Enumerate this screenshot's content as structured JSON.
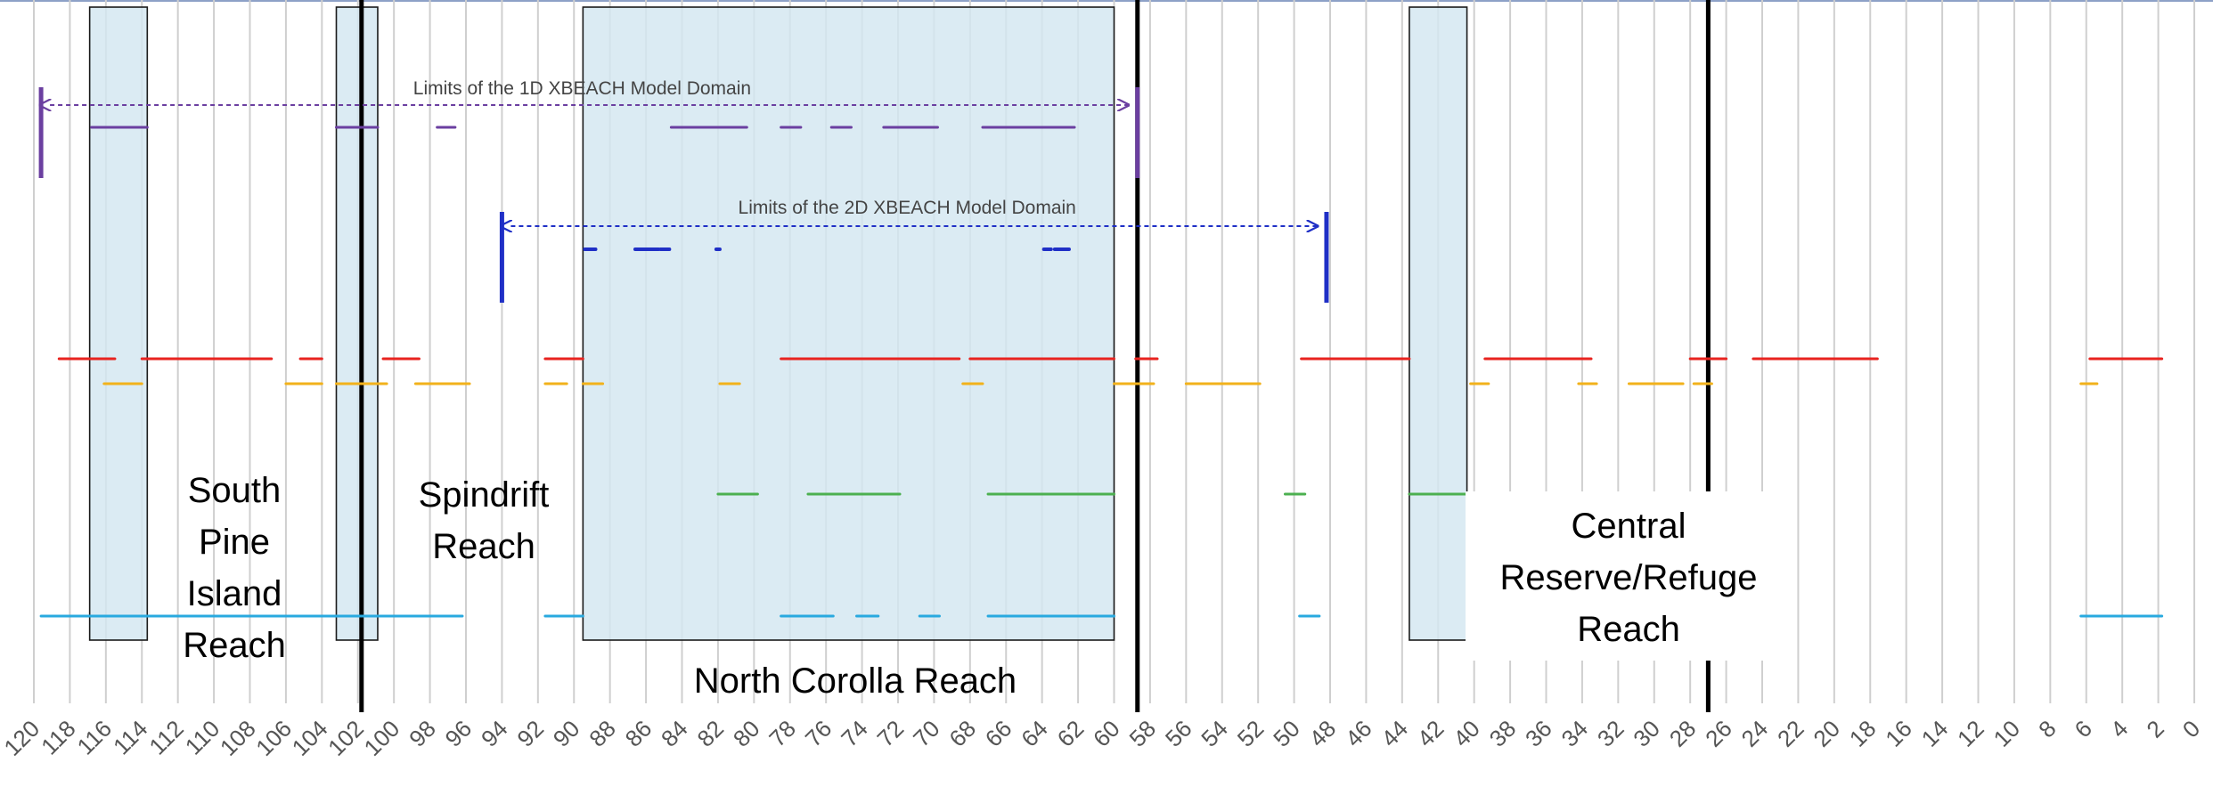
{
  "chart_data": {
    "type": "timeline",
    "x_axis": {
      "min": 0,
      "max": 120,
      "reversed": true,
      "tick_step": 2,
      "tick_labels": [
        "120",
        "118",
        "116",
        "114",
        "112",
        "110",
        "108",
        "106",
        "104",
        "102",
        "100",
        "98",
        "96",
        "94",
        "92",
        "90",
        "88",
        "86",
        "84",
        "82",
        "80",
        "78",
        "76",
        "74",
        "72",
        "70",
        "68",
        "66",
        "64",
        "62",
        "60",
        "58",
        "56",
        "54",
        "52",
        "50",
        "48",
        "46",
        "44",
        "42",
        "40",
        "38",
        "36",
        "34",
        "32",
        "30",
        "28",
        "26",
        "24",
        "22",
        "20",
        "18",
        "16",
        "14",
        "12",
        "10",
        "8",
        "6",
        "4",
        "2",
        "0"
      ],
      "grid": true
    },
    "shaded_regions": [
      {
        "from": 116.9,
        "to": 113.7
      },
      {
        "from": 103.2,
        "to": 100.9
      },
      {
        "from": 89.5,
        "to": 60.0
      },
      {
        "from": 43.6,
        "to": 40.4
      }
    ],
    "reference_lines": [
      101.8,
      58.7,
      27.0
    ],
    "domain_limits": [
      {
        "label": "Limits of the 1D XBEACH Model Domain",
        "from": 119.6,
        "to": 58.7,
        "color": "#6b3fa0"
      },
      {
        "label": "Limits of the 2D XBEACH Model Domain",
        "from": 94.0,
        "to": 48.2,
        "color": "#1f2fc6"
      }
    ],
    "series": [
      {
        "color": "#6b3fa0",
        "row": 1,
        "segments": [
          [
            116.8,
            113.7
          ],
          [
            103.2,
            100.9
          ],
          [
            97.6,
            96.6
          ],
          [
            84.6,
            80.4
          ],
          [
            78.5,
            77.4
          ],
          [
            75.7,
            74.6
          ],
          [
            72.8,
            69.8
          ],
          [
            67.3,
            62.2
          ]
        ]
      },
      {
        "color": "#1f2fc6",
        "row": 2,
        "segments": [
          [
            89.4,
            88.8
          ],
          [
            86.6,
            85.3
          ],
          [
            85.2,
            84.7
          ],
          [
            82.1,
            81.9
          ],
          [
            63.9,
            63.5
          ],
          [
            63.3,
            62.5
          ]
        ]
      },
      {
        "color": "#e8231f",
        "row": 3,
        "segments": [
          [
            118.6,
            115.5
          ],
          [
            114.0,
            106.8
          ],
          [
            105.2,
            104.0
          ],
          [
            100.6,
            98.6
          ],
          [
            91.6,
            89.5
          ],
          [
            78.5,
            68.6
          ],
          [
            68.0,
            60.0
          ],
          [
            58.8,
            57.6
          ],
          [
            49.6,
            43.6
          ],
          [
            39.4,
            33.5
          ],
          [
            28.0,
            26.0
          ],
          [
            24.5,
            17.6
          ],
          [
            5.8,
            1.8
          ]
        ]
      },
      {
        "color": "#f2b21b",
        "row": 4,
        "segments": [
          [
            116.1,
            114.0
          ],
          [
            106.0,
            104.0
          ],
          [
            103.2,
            100.4
          ],
          [
            98.8,
            95.8
          ],
          [
            91.6,
            90.4
          ],
          [
            89.5,
            88.4
          ],
          [
            81.9,
            80.8
          ],
          [
            68.4,
            67.3
          ],
          [
            60.0,
            57.8
          ],
          [
            56.0,
            51.9
          ],
          [
            40.2,
            39.2
          ],
          [
            34.2,
            33.2
          ],
          [
            31.4,
            28.4
          ],
          [
            27.8,
            26.8
          ],
          [
            6.3,
            5.4
          ]
        ]
      },
      {
        "color": "#4cb050",
        "row": 5,
        "segments": [
          [
            82.0,
            79.8
          ],
          [
            77.0,
            71.9
          ],
          [
            67.0,
            60.0
          ],
          [
            50.5,
            49.4
          ],
          [
            43.6,
            40.4
          ]
        ]
      },
      {
        "color": "#29a9df",
        "row": 6,
        "segments": [
          [
            119.6,
            96.2
          ],
          [
            91.6,
            89.5
          ],
          [
            78.5,
            75.6
          ],
          [
            74.3,
            73.1
          ],
          [
            70.8,
            69.7
          ],
          [
            67.0,
            60.0
          ],
          [
            49.7,
            48.6
          ],
          [
            6.3,
            1.8
          ]
        ]
      }
    ],
    "annotations": [
      {
        "text": "South Pine Island Reach",
        "lines": [
          "South",
          "Pine",
          "Island",
          "Reach"
        ]
      },
      {
        "text": "Spindrift Reach",
        "lines": [
          "Spindrift",
          "Reach"
        ]
      },
      {
        "text": "North Corolla Reach",
        "lines": [
          "North Corolla Reach"
        ]
      },
      {
        "text": "Central Reserve/Refuge Reach",
        "lines": [
          "Central",
          "Reserve/Refuge",
          "Reach"
        ]
      }
    ]
  }
}
